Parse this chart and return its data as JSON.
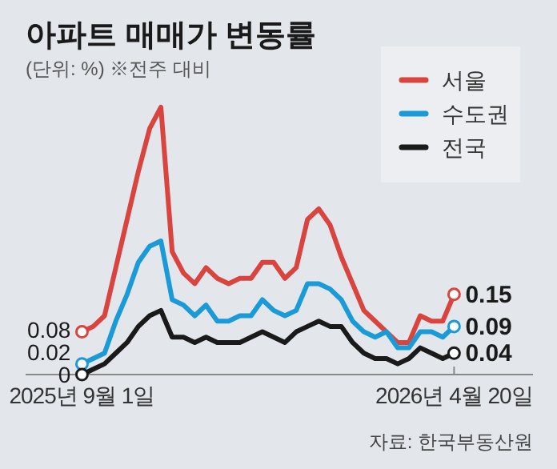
{
  "chart_data": {
    "type": "line",
    "title": "아파트 매매가 변동률",
    "subtitle": "(단위: %) ※전주 대비",
    "x": [
      "2025-09-01",
      "2025-09-08",
      "2025-09-15",
      "2025-09-22",
      "2025-09-29",
      "2025-10-06",
      "2025-10-13",
      "2025-10-20",
      "2025-10-27",
      "2025-11-03",
      "2025-11-10",
      "2025-11-17",
      "2025-11-24",
      "2025-12-01",
      "2025-12-08",
      "2025-12-15",
      "2025-12-22",
      "2025-12-29",
      "2026-01-05",
      "2026-01-12",
      "2026-01-19",
      "2026-01-26",
      "2026-02-02",
      "2026-02-09",
      "2026-02-16",
      "2026-02-23",
      "2026-03-02",
      "2026-03-09",
      "2026-03-16",
      "2026-03-23",
      "2026-03-30",
      "2026-04-06",
      "2026-04-13",
      "2026-04-20"
    ],
    "xlim": [
      "2025-07-28",
      "2026-06-08"
    ],
    "xticks": [
      {
        "value": "2025-09-01",
        "label": "2025년 9월 1일"
      },
      {
        "value": "2026-04-20",
        "label": "2026년 4월 20일"
      }
    ],
    "tick_labels": "x",
    "legend": "top right",
    "series": [
      {
        "name": "서울",
        "color": "#d9443f",
        "values": [
          0.08,
          0.09,
          0.11,
          0.2,
          0.29,
          0.38,
          0.46,
          0.5,
          0.23,
          0.19,
          0.17,
          0.2,
          0.18,
          0.17,
          0.18,
          0.18,
          0.21,
          0.21,
          0.18,
          0.2,
          0.29,
          0.31,
          0.28,
          0.22,
          0.17,
          0.12,
          0.1,
          0.08,
          0.06,
          0.06,
          0.11,
          0.1,
          0.1,
          0.15
        ],
        "value_labels": [
          "0.08",
          null,
          null,
          null,
          null,
          null,
          null,
          null,
          null,
          null,
          null,
          null,
          null,
          null,
          null,
          null,
          null,
          null,
          null,
          null,
          null,
          null,
          null,
          null,
          null,
          null,
          null,
          null,
          null,
          null,
          null,
          null,
          null,
          "0.15"
        ]
      },
      {
        "name": "수도권",
        "color": "#1a9ad6",
        "values": [
          0.02,
          0.03,
          0.04,
          0.1,
          0.15,
          0.21,
          0.24,
          0.25,
          0.14,
          0.13,
          0.11,
          0.13,
          0.1,
          0.1,
          0.11,
          0.11,
          0.14,
          0.12,
          0.11,
          0.12,
          0.17,
          0.17,
          0.16,
          0.14,
          0.1,
          0.08,
          0.07,
          0.08,
          0.05,
          0.05,
          0.08,
          0.08,
          0.07,
          0.09
        ],
        "value_labels": [
          "0.02",
          null,
          null,
          null,
          null,
          null,
          null,
          null,
          null,
          null,
          null,
          null,
          null,
          null,
          null,
          null,
          null,
          null,
          null,
          null,
          null,
          null,
          null,
          null,
          null,
          null,
          null,
          null,
          null,
          null,
          null,
          null,
          null,
          "0.09"
        ]
      },
      {
        "name": "전국",
        "color": "#1a1a1a",
        "values": [
          0,
          0.01,
          0.02,
          0.04,
          0.06,
          0.09,
          0.11,
          0.12,
          0.07,
          0.07,
          0.06,
          0.07,
          0.06,
          0.06,
          0.06,
          0.07,
          0.08,
          0.07,
          0.06,
          0.08,
          0.09,
          0.1,
          0.09,
          0.09,
          0.06,
          0.04,
          0.03,
          0.03,
          0.02,
          0.03,
          0.05,
          0.04,
          0.03,
          0.04
        ],
        "value_labels": [
          "0",
          null,
          null,
          null,
          null,
          null,
          null,
          null,
          null,
          null,
          null,
          null,
          null,
          null,
          null,
          null,
          null,
          null,
          null,
          null,
          null,
          null,
          null,
          null,
          null,
          null,
          null,
          null,
          null,
          null,
          null,
          null,
          null,
          "0.04"
        ]
      }
    ],
    "annotations": [
      "자료: 한국부동산원"
    ]
  }
}
